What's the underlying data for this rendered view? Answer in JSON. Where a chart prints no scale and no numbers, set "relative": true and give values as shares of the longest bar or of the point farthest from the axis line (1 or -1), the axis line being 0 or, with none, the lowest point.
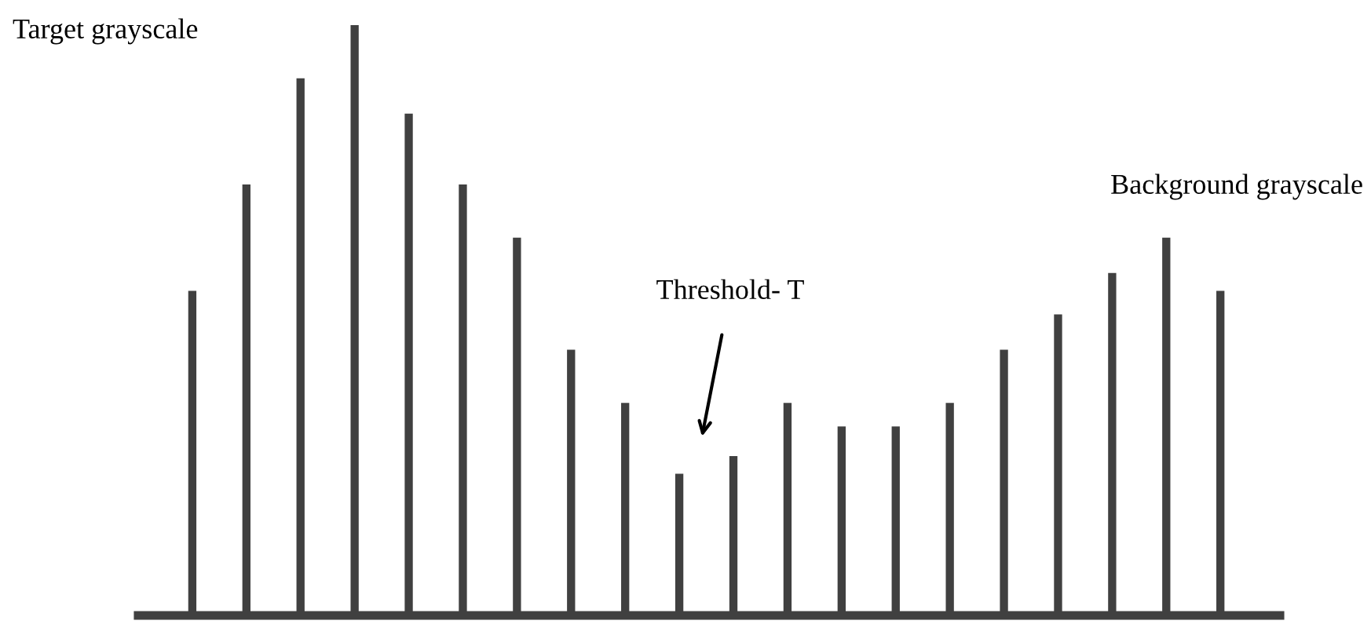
{
  "chart_data": {
    "type": "bar",
    "relative": true,
    "categories": [
      null,
      null,
      null,
      null,
      null,
      null,
      null,
      null,
      null,
      null,
      null,
      null,
      null,
      null,
      null,
      null,
      null,
      null,
      null,
      null
    ],
    "values": [
      0.55,
      0.73,
      0.91,
      1,
      0.85,
      0.73,
      0.64,
      0.45,
      0.36,
      0.24,
      0.27,
      0.36,
      0.32,
      0.32,
      0.36,
      0.45,
      0.51,
      0.58,
      0.64,
      0.55
    ],
    "color": "#404040",
    "annotations": [
      "Target grayscale",
      "Background grayscale",
      "Threshold- T"
    ],
    "grid": false,
    "legend": false
  }
}
